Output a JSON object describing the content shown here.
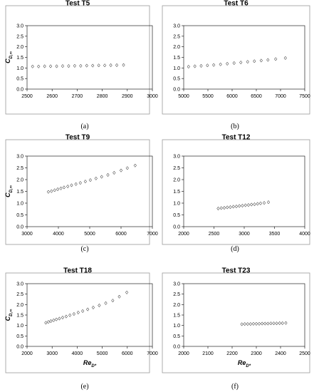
{
  "chart_data": [
    {
      "type": "scatter",
      "title": "Test T5",
      "caption": "(a)",
      "ylabel": "C",
      "ylabel_sub": "D,∞",
      "xlabel": "",
      "xlabel_sub": "",
      "xlim": [
        2500,
        3000
      ],
      "ylim": [
        0,
        3
      ],
      "xticks": [
        "2500",
        "2600",
        "2700",
        "2800",
        "2900",
        "3000"
      ],
      "yticks": [
        "0.0",
        "0.5",
        "1.0",
        "1.5",
        "2.0",
        "2.5",
        "3.0"
      ],
      "x": [
        2522,
        2546,
        2570,
        2594,
        2618,
        2642,
        2666,
        2690,
        2714,
        2738,
        2762,
        2786,
        2810,
        2834,
        2858,
        2885
      ],
      "y": [
        1.07,
        1.07,
        1.08,
        1.08,
        1.08,
        1.09,
        1.09,
        1.1,
        1.1,
        1.11,
        1.11,
        1.12,
        1.12,
        1.13,
        1.13,
        1.14
      ]
    },
    {
      "type": "scatter",
      "title": "Test T6",
      "caption": "(b)",
      "ylabel": "",
      "ylabel_sub": "",
      "xlabel": "",
      "xlabel_sub": "",
      "xlim": [
        5000,
        7500
      ],
      "ylim": [
        0,
        3
      ],
      "xticks": [
        "5000",
        "5500",
        "6000",
        "6500",
        "7000",
        "7500"
      ],
      "yticks": [
        "0.0",
        "0.5",
        "1.0",
        "1.5",
        "2.0",
        "2.5",
        "3.0"
      ],
      "x": [
        5100,
        5230,
        5360,
        5490,
        5620,
        5760,
        5900,
        6040,
        6180,
        6320,
        6460,
        6600,
        6740,
        6900,
        7100
      ],
      "y": [
        1.06,
        1.08,
        1.1,
        1.12,
        1.14,
        1.17,
        1.2,
        1.23,
        1.26,
        1.29,
        1.32,
        1.35,
        1.38,
        1.42,
        1.47
      ]
    },
    {
      "type": "scatter",
      "title": "Test T9",
      "caption": "(c)",
      "ylabel": "C",
      "ylabel_sub": "D,∞",
      "xlabel": "",
      "xlabel_sub": "",
      "xlim": [
        3000,
        7000
      ],
      "ylim": [
        0,
        3
      ],
      "xticks": [
        "3000",
        "4000",
        "5000",
        "6000",
        "7000"
      ],
      "yticks": [
        "0.0",
        "0.5",
        "1.0",
        "1.5",
        "2.0",
        "2.5",
        "3.0"
      ],
      "x": [
        3680,
        3780,
        3880,
        3980,
        4080,
        4180,
        4300,
        4420,
        4560,
        4700,
        4860,
        5020,
        5200,
        5380,
        5580,
        5780,
        6000,
        6200,
        6450
      ],
      "y": [
        1.48,
        1.51,
        1.55,
        1.59,
        1.63,
        1.67,
        1.71,
        1.76,
        1.81,
        1.86,
        1.92,
        1.98,
        2.05,
        2.12,
        2.2,
        2.29,
        2.39,
        2.49,
        2.6
      ]
    },
    {
      "type": "scatter",
      "title": "Test T12",
      "caption": "(d)",
      "ylabel": "",
      "ylabel_sub": "",
      "xlabel": "",
      "xlabel_sub": "",
      "xlim": [
        2000,
        4000
      ],
      "ylim": [
        0,
        3
      ],
      "xticks": [
        "2000",
        "2500",
        "3000",
        "3500",
        "4000"
      ],
      "yticks": [
        "0.0",
        "0.5",
        "1.0",
        "1.5",
        "2.0",
        "2.5",
        "3.0"
      ],
      "x": [
        2570,
        2620,
        2670,
        2720,
        2770,
        2820,
        2870,
        2920,
        2970,
        3020,
        3070,
        3120,
        3170,
        3220,
        3270,
        3330,
        3400
      ],
      "y": [
        0.77,
        0.79,
        0.8,
        0.82,
        0.83,
        0.85,
        0.86,
        0.88,
        0.89,
        0.91,
        0.92,
        0.94,
        0.95,
        0.97,
        0.99,
        1.01,
        1.04
      ]
    },
    {
      "type": "scatter",
      "title": "Test T18",
      "caption": "(e)",
      "ylabel": "C",
      "ylabel_sub": "D,∞",
      "xlabel": "Re",
      "xlabel_sub": "D*",
      "xlim": [
        2000,
        7000
      ],
      "ylim": [
        0,
        3
      ],
      "xticks": [
        "2000",
        "3000",
        "4000",
        "5000",
        "6000",
        "7000"
      ],
      "yticks": [
        "0.0",
        "0.5",
        "1.0",
        "1.5",
        "2.0",
        "2.5",
        "3.0"
      ],
      "x": [
        2750,
        2850,
        2950,
        3060,
        3170,
        3290,
        3420,
        3560,
        3710,
        3870,
        4040,
        4220,
        4420,
        4640,
        4880,
        5140,
        5420,
        5680,
        5980
      ],
      "y": [
        1.13,
        1.17,
        1.21,
        1.25,
        1.29,
        1.33,
        1.38,
        1.43,
        1.49,
        1.55,
        1.62,
        1.69,
        1.77,
        1.86,
        1.96,
        2.07,
        2.19,
        2.38,
        2.58
      ]
    },
    {
      "type": "scatter",
      "title": "Test T23",
      "caption": "(f)",
      "ylabel": "",
      "ylabel_sub": "",
      "xlabel": "Re",
      "xlabel_sub": "D*",
      "xlim": [
        2000,
        2500
      ],
      "ylim": [
        0,
        3
      ],
      "xticks": [
        "2000",
        "2100",
        "2200",
        "2300",
        "2400",
        "2500"
      ],
      "yticks": [
        "0.0",
        "0.5",
        "1.0",
        "1.5",
        "2.0",
        "2.5",
        "3.0"
      ],
      "x": [
        2240,
        2252,
        2264,
        2276,
        2288,
        2300,
        2312,
        2324,
        2336,
        2348,
        2360,
        2372,
        2384,
        2396,
        2408,
        2422
      ],
      "y": [
        1.06,
        1.07,
        1.07,
        1.07,
        1.08,
        1.08,
        1.08,
        1.09,
        1.09,
        1.09,
        1.1,
        1.1,
        1.1,
        1.11,
        1.11,
        1.12
      ]
    }
  ]
}
